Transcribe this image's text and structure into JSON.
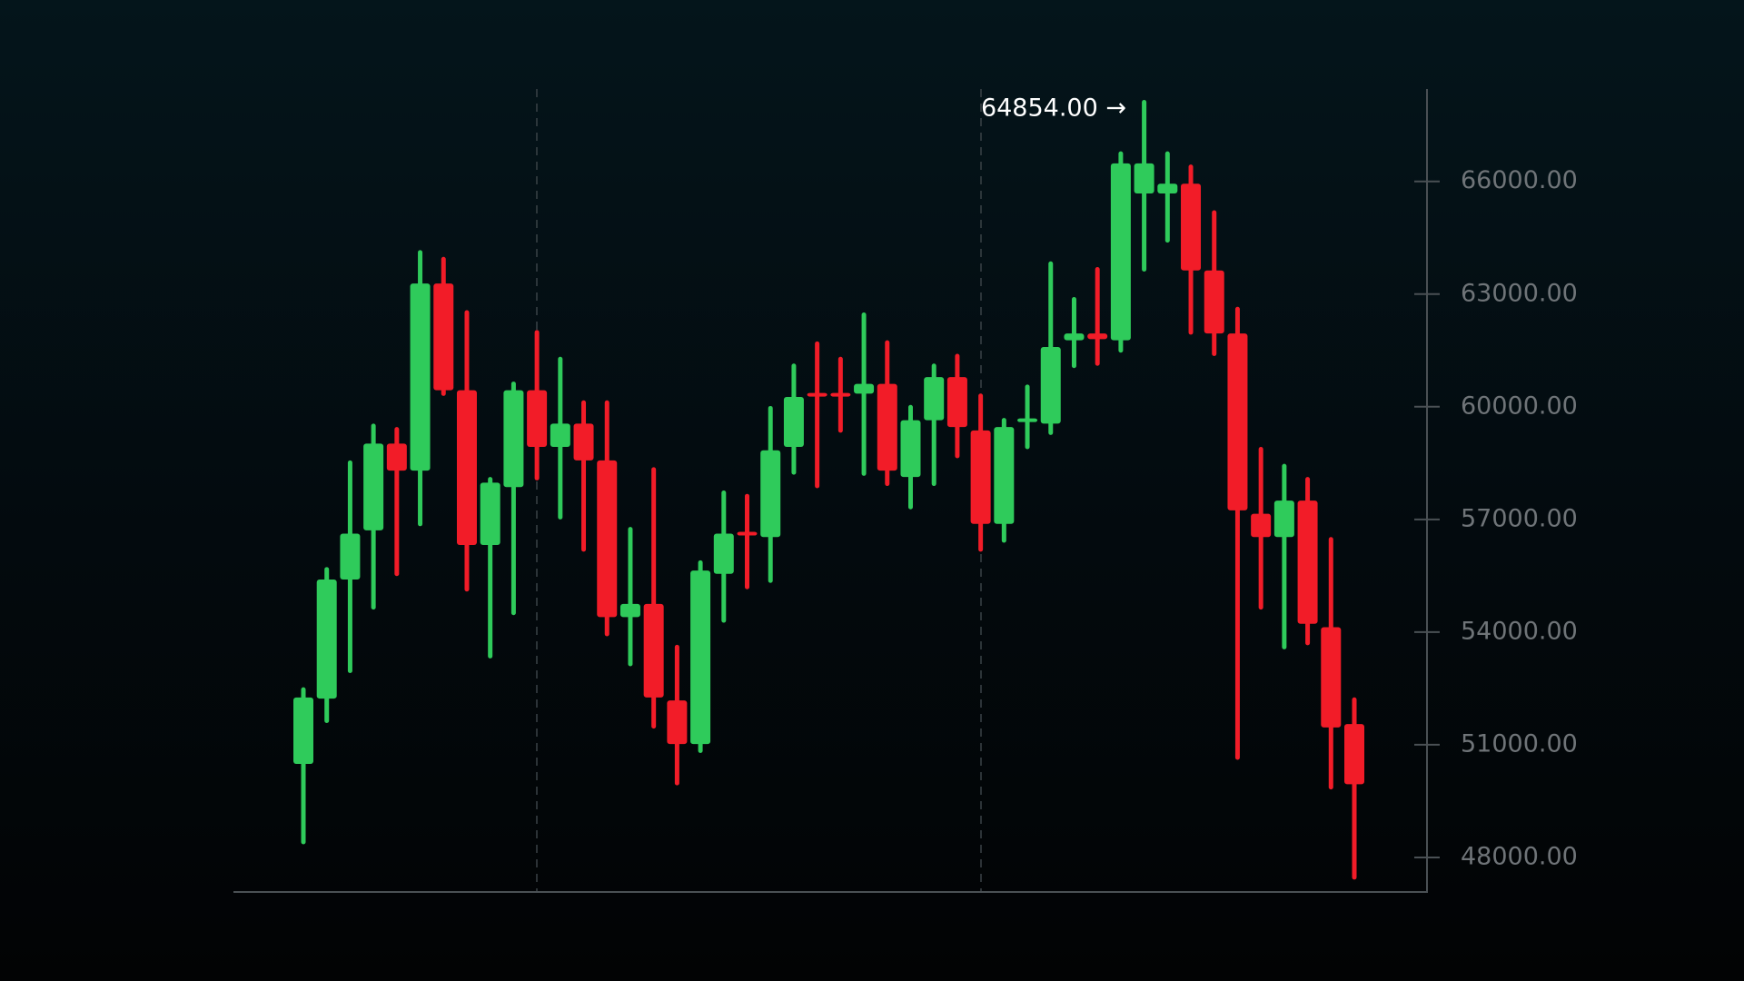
{
  "chart_data": {
    "type": "candlestick",
    "annotation": "64854.00 →",
    "up_color": "#2fcb5b",
    "down_color": "#f21c28",
    "ylim": [
      47080,
      68460
    ],
    "yticks": [
      {
        "value": 48000,
        "label": "48000.00"
      },
      {
        "value": 51000,
        "label": "51000.00"
      },
      {
        "value": 54000,
        "label": "54000.00"
      },
      {
        "value": 57000,
        "label": "57000.00"
      },
      {
        "value": 60000,
        "label": "60000.00"
      },
      {
        "value": 63000,
        "label": "63000.00"
      },
      {
        "value": 66000,
        "label": "66000.00"
      }
    ],
    "open": [
      50490,
      52230,
      55400,
      56710,
      59020,
      58300,
      63280,
      60440,
      56320,
      57860,
      60440,
      58930,
      59550,
      58570,
      54400,
      54750,
      52180,
      51020,
      55550,
      56620,
      56530,
      58930,
      60320,
      60320,
      60350,
      60610,
      58130,
      59640,
      60790,
      59370,
      56880,
      59550,
      59550,
      61770,
      61950,
      61770,
      65680,
      65680,
      65940,
      63630,
      61950,
      57150,
      56530,
      57500,
      54130,
      51550
    ],
    "high": [
      52470,
      55670,
      58510,
      59490,
      59400,
      64110,
      63930,
      62510,
      58070,
      60610,
      61980,
      61270,
      60110,
      60110,
      56740,
      58330,
      53600,
      55850,
      57710,
      57620,
      59960,
      61090,
      61680,
      61270,
      62450,
      61710,
      59990,
      61090,
      61350,
      60290,
      59640,
      60530,
      63810,
      62860,
      63660,
      66740,
      68110,
      66740,
      66390,
      65170,
      62600,
      58870,
      58420,
      58070,
      56470,
      52200
    ],
    "low": [
      48410,
      51640,
      52970,
      54660,
      55550,
      56880,
      60350,
      55140,
      53360,
      54510,
      58100,
      57060,
      56200,
      53950,
      53150,
      51490,
      49980,
      50840,
      54310,
      55200,
      55370,
      58250,
      57890,
      59370,
      58220,
      57950,
      57330,
      57950,
      58690,
      56200,
      56440,
      58930,
      59310,
      61090,
      61150,
      61500,
      63660,
      64430,
      61980,
      61410,
      50660,
      54660,
      53600,
      53710,
      49870,
      47470
    ],
    "close": [
      52260,
      55400,
      56620,
      59020,
      58300,
      63280,
      60440,
      56320,
      57980,
      60440,
      58930,
      59550,
      58570,
      54400,
      54750,
      52260,
      51020,
      55640,
      56620,
      56530,
      58840,
      60260,
      60260,
      60260,
      60610,
      58300,
      59640,
      60790,
      59460,
      56880,
      59460,
      59640,
      61590,
      61950,
      61800,
      66480,
      66480,
      65940,
      63630,
      61950,
      57240,
      56530,
      57500,
      54220,
      51460,
      49950
    ]
  }
}
